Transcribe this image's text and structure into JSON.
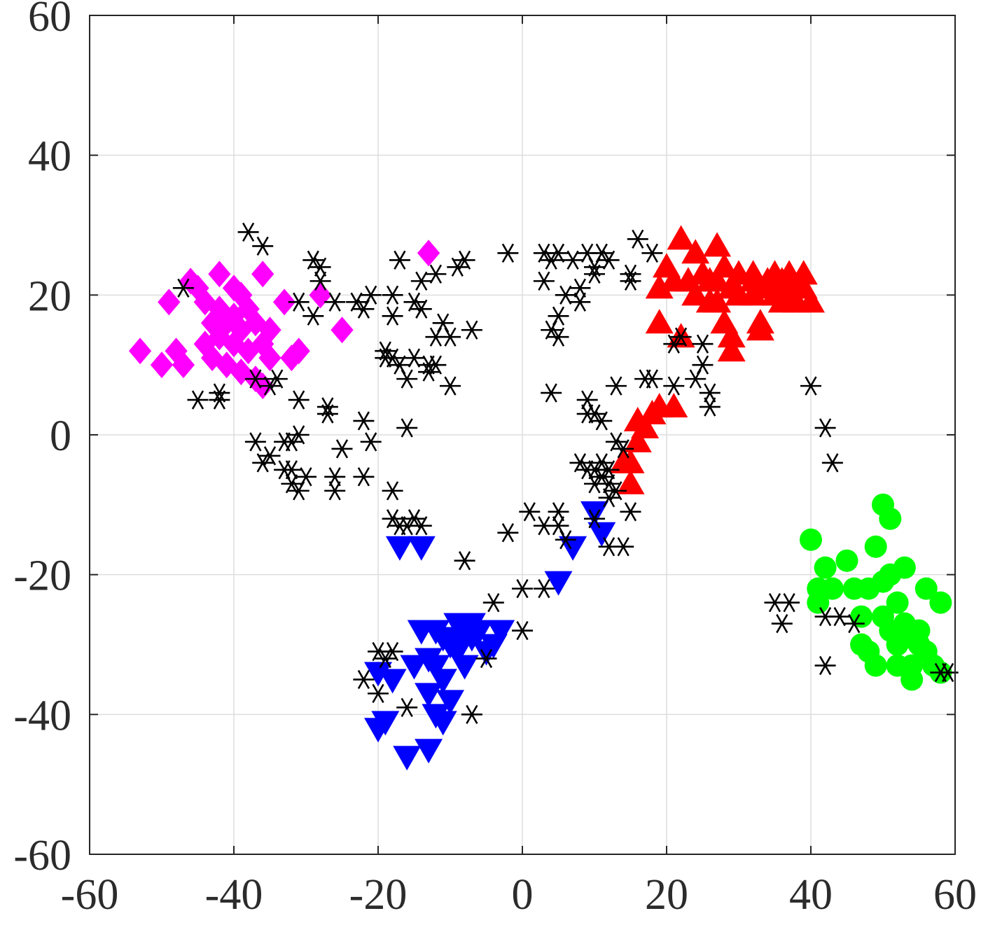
{
  "chart_data": {
    "type": "scatter",
    "title": "",
    "xlabel": "",
    "ylabel": "",
    "xlim": [
      -60,
      60
    ],
    "ylim": [
      -60,
      60
    ],
    "grid": true,
    "xticks": [
      "-60",
      "-40",
      "-20",
      "0",
      "20",
      "40",
      "60"
    ],
    "yticks": [
      "-60",
      "-40",
      "-20",
      "0",
      "20",
      "40",
      "60"
    ],
    "series": [
      {
        "marker": "diamond",
        "color": "#ff00ff",
        "points": [
          [
            -53,
            12
          ],
          [
            -50,
            10
          ],
          [
            -49,
            19
          ],
          [
            -48,
            12
          ],
          [
            -47,
            10
          ],
          [
            -46,
            22
          ],
          [
            -45,
            21
          ],
          [
            -44,
            19
          ],
          [
            -44,
            13
          ],
          [
            -43,
            11
          ],
          [
            -43,
            16
          ],
          [
            -42,
            23
          ],
          [
            -42,
            18
          ],
          [
            -42,
            14
          ],
          [
            -41,
            16
          ],
          [
            -41,
            10
          ],
          [
            -40,
            21
          ],
          [
            -40,
            17
          ],
          [
            -40,
            13
          ],
          [
            -39,
            20
          ],
          [
            -39,
            15
          ],
          [
            -39,
            9
          ],
          [
            -38,
            18
          ],
          [
            -38,
            12
          ],
          [
            -37,
            8
          ],
          [
            -37,
            16
          ],
          [
            -36,
            13
          ],
          [
            -36,
            7
          ],
          [
            -36,
            23
          ],
          [
            -35,
            15
          ],
          [
            -35,
            11
          ],
          [
            -33,
            19
          ],
          [
            -32,
            11
          ],
          [
            -31,
            12
          ],
          [
            -28,
            20
          ],
          [
            -25,
            15
          ],
          [
            -13,
            26
          ]
        ]
      },
      {
        "marker": "triangle-up",
        "color": "#ff0000",
        "points": [
          [
            20,
            24
          ],
          [
            19,
            21
          ],
          [
            21,
            22
          ],
          [
            19,
            16
          ],
          [
            22,
            14
          ],
          [
            22,
            28
          ],
          [
            23,
            22
          ],
          [
            24,
            26
          ],
          [
            24,
            20
          ],
          [
            25,
            23
          ],
          [
            26,
            22
          ],
          [
            26,
            19
          ],
          [
            27,
            27
          ],
          [
            27,
            22
          ],
          [
            27,
            19
          ],
          [
            28,
            24
          ],
          [
            28,
            16
          ],
          [
            29,
            21
          ],
          [
            29,
            14
          ],
          [
            29,
            12
          ],
          [
            30,
            23
          ],
          [
            30,
            20
          ],
          [
            32,
            23
          ],
          [
            32,
            22
          ],
          [
            32,
            20
          ],
          [
            33,
            16
          ],
          [
            33,
            15
          ],
          [
            34,
            22
          ],
          [
            34,
            21
          ],
          [
            35,
            20
          ],
          [
            35,
            23
          ],
          [
            36,
            19
          ],
          [
            36,
            22
          ],
          [
            37,
            23
          ],
          [
            37,
            20
          ],
          [
            38,
            21
          ],
          [
            38,
            19
          ],
          [
            39,
            23
          ],
          [
            39,
            21
          ],
          [
            40,
            19
          ],
          [
            16,
            -1
          ],
          [
            16,
            2
          ],
          [
            17,
            1
          ],
          [
            18,
            3
          ],
          [
            19,
            4
          ],
          [
            21,
            4
          ],
          [
            14,
            -4
          ],
          [
            15,
            -4
          ],
          [
            15,
            -7
          ]
        ]
      },
      {
        "marker": "triangle-down",
        "color": "#0000ff",
        "points": [
          [
            -17,
            -16
          ],
          [
            -14,
            -16
          ],
          [
            -20,
            -34
          ],
          [
            -18,
            -35
          ],
          [
            -20,
            -42
          ],
          [
            -19,
            -41
          ],
          [
            -16,
            -46
          ],
          [
            -13,
            -45
          ],
          [
            -15,
            -33
          ],
          [
            -14,
            -28
          ],
          [
            -13,
            -32
          ],
          [
            -12,
            -28
          ],
          [
            -12,
            -33
          ],
          [
            -11,
            -35
          ],
          [
            -11,
            -29
          ],
          [
            -10,
            -30
          ],
          [
            -9,
            -27
          ],
          [
            -9,
            -31
          ],
          [
            -8,
            -28
          ],
          [
            -8,
            -33
          ],
          [
            -7,
            -27
          ],
          [
            -6,
            -28
          ],
          [
            -5,
            -31
          ],
          [
            -4,
            -30
          ],
          [
            -3,
            -28
          ],
          [
            -13,
            -37
          ],
          [
            -12,
            -40
          ],
          [
            -11,
            -41
          ],
          [
            -10,
            -38
          ],
          [
            -11,
            -35
          ],
          [
            -9,
            -29
          ],
          [
            -7,
            -29
          ],
          [
            7,
            -16
          ],
          [
            5,
            -21
          ],
          [
            10,
            -11
          ],
          [
            11,
            -14
          ]
        ]
      },
      {
        "marker": "circle",
        "color": "#00ff00",
        "points": [
          [
            40,
            -15
          ],
          [
            41,
            -22
          ],
          [
            41,
            -24
          ],
          [
            42,
            -19
          ],
          [
            43,
            -22
          ],
          [
            45,
            -18
          ],
          [
            46,
            -22
          ],
          [
            47,
            -26
          ],
          [
            47,
            -30
          ],
          [
            48,
            -22
          ],
          [
            48,
            -31
          ],
          [
            49,
            -33
          ],
          [
            49,
            -16
          ],
          [
            50,
            -10
          ],
          [
            50,
            -21
          ],
          [
            50,
            -26
          ],
          [
            51,
            -28
          ],
          [
            51,
            -12
          ],
          [
            51,
            -20
          ],
          [
            52,
            -30
          ],
          [
            52,
            -33
          ],
          [
            52,
            -24
          ],
          [
            53,
            -27
          ],
          [
            53,
            -19
          ],
          [
            54,
            -33
          ],
          [
            54,
            -35
          ],
          [
            54,
            -29
          ],
          [
            55,
            -28
          ],
          [
            55,
            -30
          ],
          [
            56,
            -22
          ],
          [
            56,
            -31
          ],
          [
            57,
            -33
          ],
          [
            58,
            -24
          ],
          [
            58,
            -34
          ]
        ]
      },
      {
        "marker": "asterisk",
        "color": "#000000",
        "points": [
          [
            -47,
            21
          ],
          [
            -45,
            5
          ],
          [
            -42,
            6
          ],
          [
            -42,
            5
          ],
          [
            -38,
            29
          ],
          [
            -36,
            27
          ],
          [
            -37,
            8
          ],
          [
            -35,
            7
          ],
          [
            -34,
            8
          ],
          [
            -33,
            -1
          ],
          [
            -32,
            -1
          ],
          [
            -31,
            0
          ],
          [
            -31,
            5
          ],
          [
            -31,
            19
          ],
          [
            -30,
            -6
          ],
          [
            -29,
            25
          ],
          [
            -29,
            17
          ],
          [
            -28,
            24
          ],
          [
            -28,
            22
          ],
          [
            -27,
            4
          ],
          [
            -27,
            3
          ],
          [
            -26,
            19
          ],
          [
            -26,
            -6
          ],
          [
            -26,
            -8
          ],
          [
            -25,
            -2
          ],
          [
            -23,
            19
          ],
          [
            -22,
            18
          ],
          [
            -22,
            -6
          ],
          [
            -22,
            2
          ],
          [
            -21,
            20
          ],
          [
            -21,
            -1
          ],
          [
            -19,
            12
          ],
          [
            -19,
            11
          ],
          [
            -18,
            11
          ],
          [
            -18,
            20
          ],
          [
            -18,
            17
          ],
          [
            -17,
            10
          ],
          [
            -17,
            25
          ],
          [
            -16,
            1
          ],
          [
            -16,
            8
          ],
          [
            -15,
            19
          ],
          [
            -15,
            11
          ],
          [
            -14,
            18
          ],
          [
            -14,
            22
          ],
          [
            -13,
            9
          ],
          [
            -13,
            10
          ],
          [
            -12,
            14
          ],
          [
            -12,
            23
          ],
          [
            -12,
            10
          ],
          [
            -11,
            16
          ],
          [
            -10,
            14
          ],
          [
            -10,
            7
          ],
          [
            -9,
            24
          ],
          [
            -8,
            25
          ],
          [
            -7,
            15
          ],
          [
            -2,
            26
          ],
          [
            -37,
            -1
          ],
          [
            -36,
            -4
          ],
          [
            -33,
            -5
          ],
          [
            -32,
            -7
          ],
          [
            -32,
            -5
          ],
          [
            -31,
            -8
          ],
          [
            -35,
            -3
          ],
          [
            -18,
            -8
          ],
          [
            -18,
            -12
          ],
          [
            -17,
            -13
          ],
          [
            -16,
            -13
          ],
          [
            -15,
            -12
          ],
          [
            -14,
            -13
          ],
          [
            -8,
            -18
          ],
          [
            -2,
            -14
          ],
          [
            1,
            -11
          ],
          [
            3,
            -13
          ],
          [
            5,
            -13
          ],
          [
            5,
            -11
          ],
          [
            6,
            -15
          ],
          [
            -4,
            -24
          ],
          [
            0,
            -22
          ],
          [
            3,
            -22
          ],
          [
            0,
            -28
          ],
          [
            -5,
            -32
          ],
          [
            -7,
            -40
          ],
          [
            -20,
            -31
          ],
          [
            -19,
            -32
          ],
          [
            -18,
            -31
          ],
          [
            -22,
            -35
          ],
          [
            -20,
            -37
          ],
          [
            -16,
            -39
          ],
          [
            3,
            26
          ],
          [
            3,
            22
          ],
          [
            4,
            15
          ],
          [
            4,
            25
          ],
          [
            5,
            14
          ],
          [
            5,
            26
          ],
          [
            5,
            17
          ],
          [
            6,
            20
          ],
          [
            7,
            25
          ],
          [
            8,
            19
          ],
          [
            8,
            21
          ],
          [
            9,
            26
          ],
          [
            10,
            24
          ],
          [
            10,
            23
          ],
          [
            11,
            26
          ],
          [
            12,
            25
          ],
          [
            15,
            23
          ],
          [
            15,
            22
          ],
          [
            16,
            28
          ],
          [
            18,
            26
          ],
          [
            4,
            6
          ],
          [
            9,
            5
          ],
          [
            9,
            3
          ],
          [
            10,
            3
          ],
          [
            11,
            2
          ],
          [
            13,
            7
          ],
          [
            13,
            -1
          ],
          [
            14,
            -2
          ],
          [
            8,
            -4
          ],
          [
            9,
            -5
          ],
          [
            10,
            -5
          ],
          [
            10,
            -7
          ],
          [
            11,
            -4
          ],
          [
            11,
            -6
          ],
          [
            12,
            -5
          ],
          [
            12,
            -9
          ],
          [
            12,
            -7
          ],
          [
            13,
            -8
          ],
          [
            10,
            -12
          ],
          [
            12,
            -16
          ],
          [
            14,
            -16
          ],
          [
            15,
            -11
          ],
          [
            17,
            8
          ],
          [
            18,
            8
          ],
          [
            21,
            7
          ],
          [
            21,
            13
          ],
          [
            22,
            14
          ],
          [
            24,
            8
          ],
          [
            25,
            13
          ],
          [
            25,
            10
          ],
          [
            26,
            6
          ],
          [
            26,
            4
          ],
          [
            40,
            7
          ],
          [
            42,
            1
          ],
          [
            43,
            -4
          ],
          [
            35,
            -24
          ],
          [
            36,
            -27
          ],
          [
            37,
            -24
          ],
          [
            42,
            -33
          ],
          [
            42,
            -26
          ],
          [
            44,
            -26
          ],
          [
            46,
            -27
          ],
          [
            59,
            -34
          ],
          [
            58,
            -34
          ]
        ]
      }
    ]
  }
}
